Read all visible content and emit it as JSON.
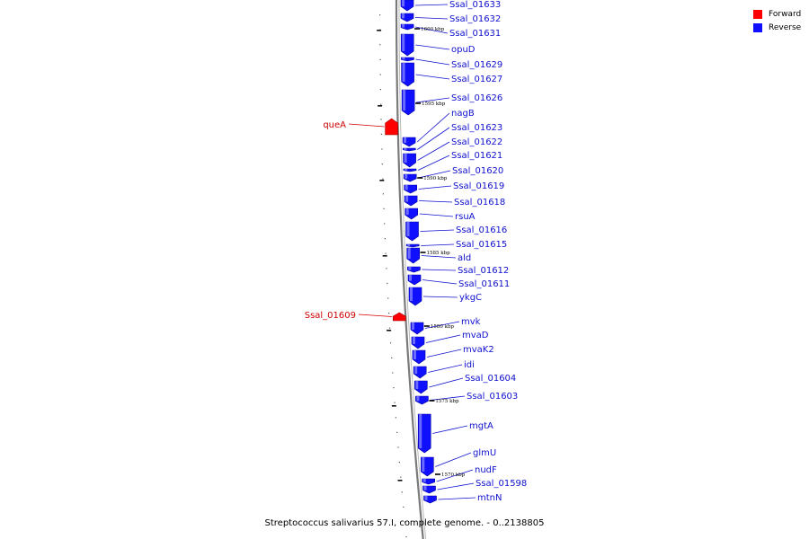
{
  "colors": {
    "forward": "#ff0000",
    "reverse": "#1010ff",
    "label_forward": "#d00000",
    "label_reverse": "#1010d0",
    "backbone": "#7a7a7a"
  },
  "legend": [
    {
      "label": "Forward",
      "color": "#ff0000"
    },
    {
      "label": "Reverse",
      "color": "#1010ff"
    }
  ],
  "caption": "Streptococcus salivarius 57.I, complete genome. - 0..2138805",
  "genes": [
    {
      "name": "Ssal_01633",
      "strand": "reverse"
    },
    {
      "name": "Ssal_01632",
      "strand": "reverse"
    },
    {
      "name": "Ssal_01631",
      "strand": "reverse"
    },
    {
      "name": "opuD",
      "strand": "reverse"
    },
    {
      "name": "Ssal_01629",
      "strand": "reverse"
    },
    {
      "name": "Ssal_01627",
      "strand": "reverse"
    },
    {
      "name": "Ssal_01626",
      "strand": "reverse"
    },
    {
      "name": "nagB",
      "strand": "reverse"
    },
    {
      "name": "Ssal_01623",
      "strand": "reverse"
    },
    {
      "name": "Ssal_01622",
      "strand": "reverse"
    },
    {
      "name": "Ssal_01621",
      "strand": "reverse"
    },
    {
      "name": "Ssal_01620",
      "strand": "reverse"
    },
    {
      "name": "Ssal_01619",
      "strand": "reverse"
    },
    {
      "name": "Ssal_01618",
      "strand": "reverse"
    },
    {
      "name": "rsuA",
      "strand": "reverse"
    },
    {
      "name": "Ssal_01616",
      "strand": "reverse"
    },
    {
      "name": "Ssal_01615",
      "strand": "reverse"
    },
    {
      "name": "ald",
      "strand": "reverse"
    },
    {
      "name": "Ssal_01612",
      "strand": "reverse"
    },
    {
      "name": "Ssal_01611",
      "strand": "reverse"
    },
    {
      "name": "ykgC",
      "strand": "reverse"
    },
    {
      "name": "mvk",
      "strand": "reverse"
    },
    {
      "name": "mvaD",
      "strand": "reverse"
    },
    {
      "name": "mvaK2",
      "strand": "reverse"
    },
    {
      "name": "idi",
      "strand": "reverse"
    },
    {
      "name": "Ssal_01604",
      "strand": "reverse"
    },
    {
      "name": "Ssal_01603",
      "strand": "reverse"
    },
    {
      "name": "mgtA",
      "strand": "reverse"
    },
    {
      "name": "glmU",
      "strand": "reverse"
    },
    {
      "name": "nudF",
      "strand": "reverse"
    },
    {
      "name": "Ssal_01598",
      "strand": "reverse"
    },
    {
      "name": "mtnN",
      "strand": "reverse"
    },
    {
      "name": "queA",
      "strand": "forward"
    },
    {
      "name": "Ssal_01609",
      "strand": "forward"
    }
  ],
  "ticks": [
    "1600 kbp",
    "1595 kbp",
    "1590 kbp",
    "1585 kbp",
    "1580 kbp",
    "1575 kbp",
    "1570 kbp"
  ]
}
